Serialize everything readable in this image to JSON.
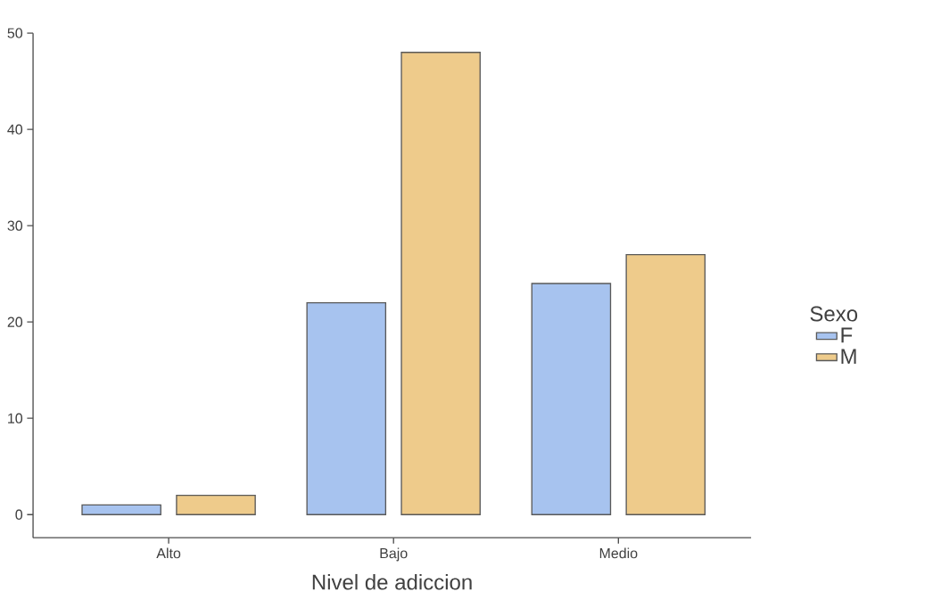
{
  "chart_data": {
    "type": "bar",
    "xlabel": "Nivel de adiccion",
    "legend_title": "Sexo",
    "legend": "right",
    "categories": [
      "Alto",
      "Bajo",
      "Medio"
    ],
    "series": [
      {
        "name": "F",
        "color": "#a7c3ef",
        "values": [
          1,
          22,
          24
        ]
      },
      {
        "name": "M",
        "color": "#eecb8b",
        "values": [
          2,
          48,
          27
        ]
      }
    ],
    "ylim": [
      -2.4,
      50
    ],
    "yticks": [
      0,
      10,
      20,
      30,
      40,
      50
    ],
    "grid": false
  }
}
